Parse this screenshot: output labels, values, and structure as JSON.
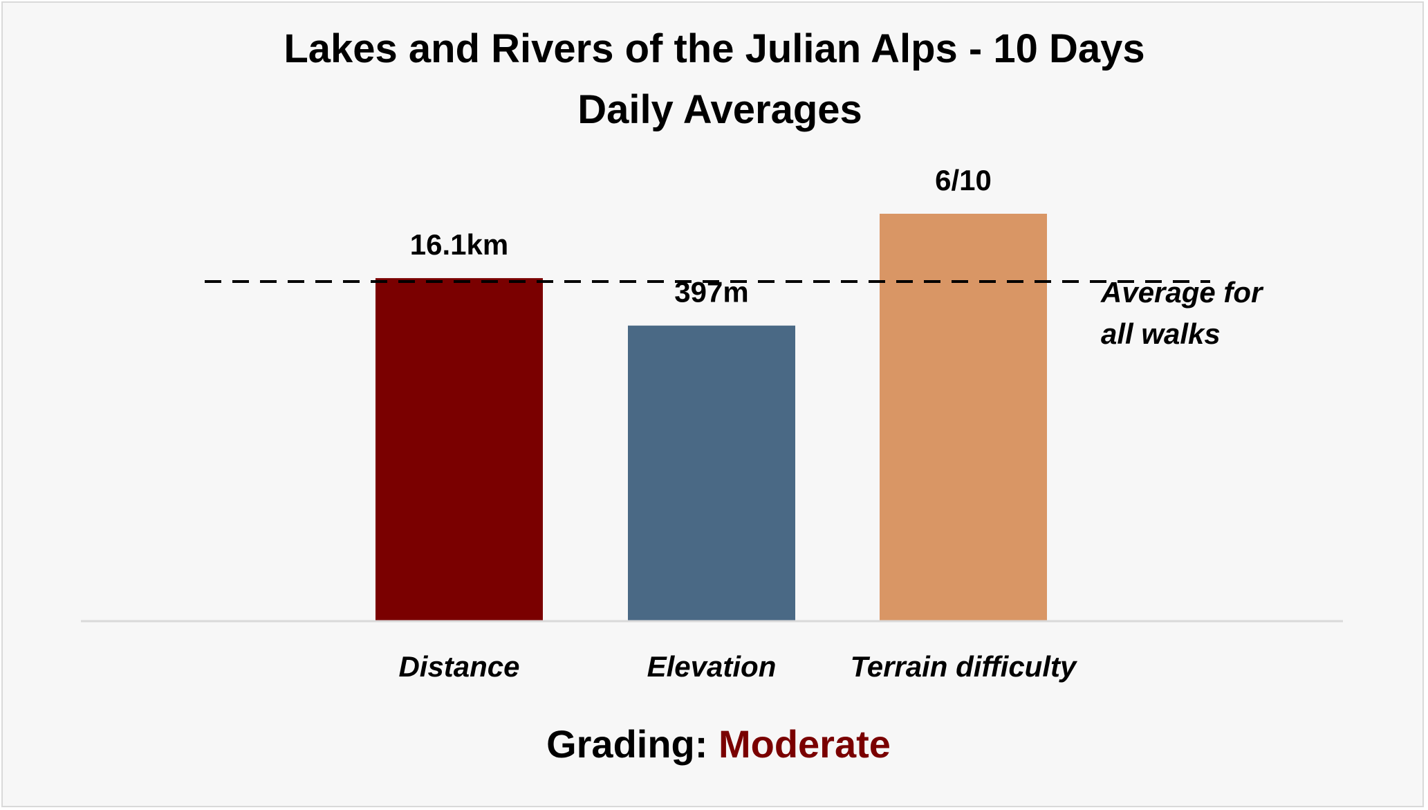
{
  "chart_data": {
    "type": "bar",
    "title": "Lakes and Rivers of the Julian Alps - 10 Days",
    "subtitle": "Daily Averages",
    "categories": [
      "Distance",
      "Elevation",
      "Terrain difficulty"
    ],
    "values": [
      1.01,
      0.87,
      1.2
    ],
    "data_labels": [
      "16.1km",
      "397m",
      "6/10"
    ],
    "colors": [
      "#7a0000",
      "#4a6985",
      "#d99665"
    ],
    "ylim": [
      0,
      1.2
    ],
    "grid": false,
    "reference_line": {
      "value": 1.0,
      "label_line1": "Average for",
      "label_line2": "all walks",
      "style": "dashed"
    }
  },
  "footer": {
    "grading_prefix": "Grading: ",
    "grading_value": "Moderate",
    "grading_value_color": "#7a0000"
  }
}
